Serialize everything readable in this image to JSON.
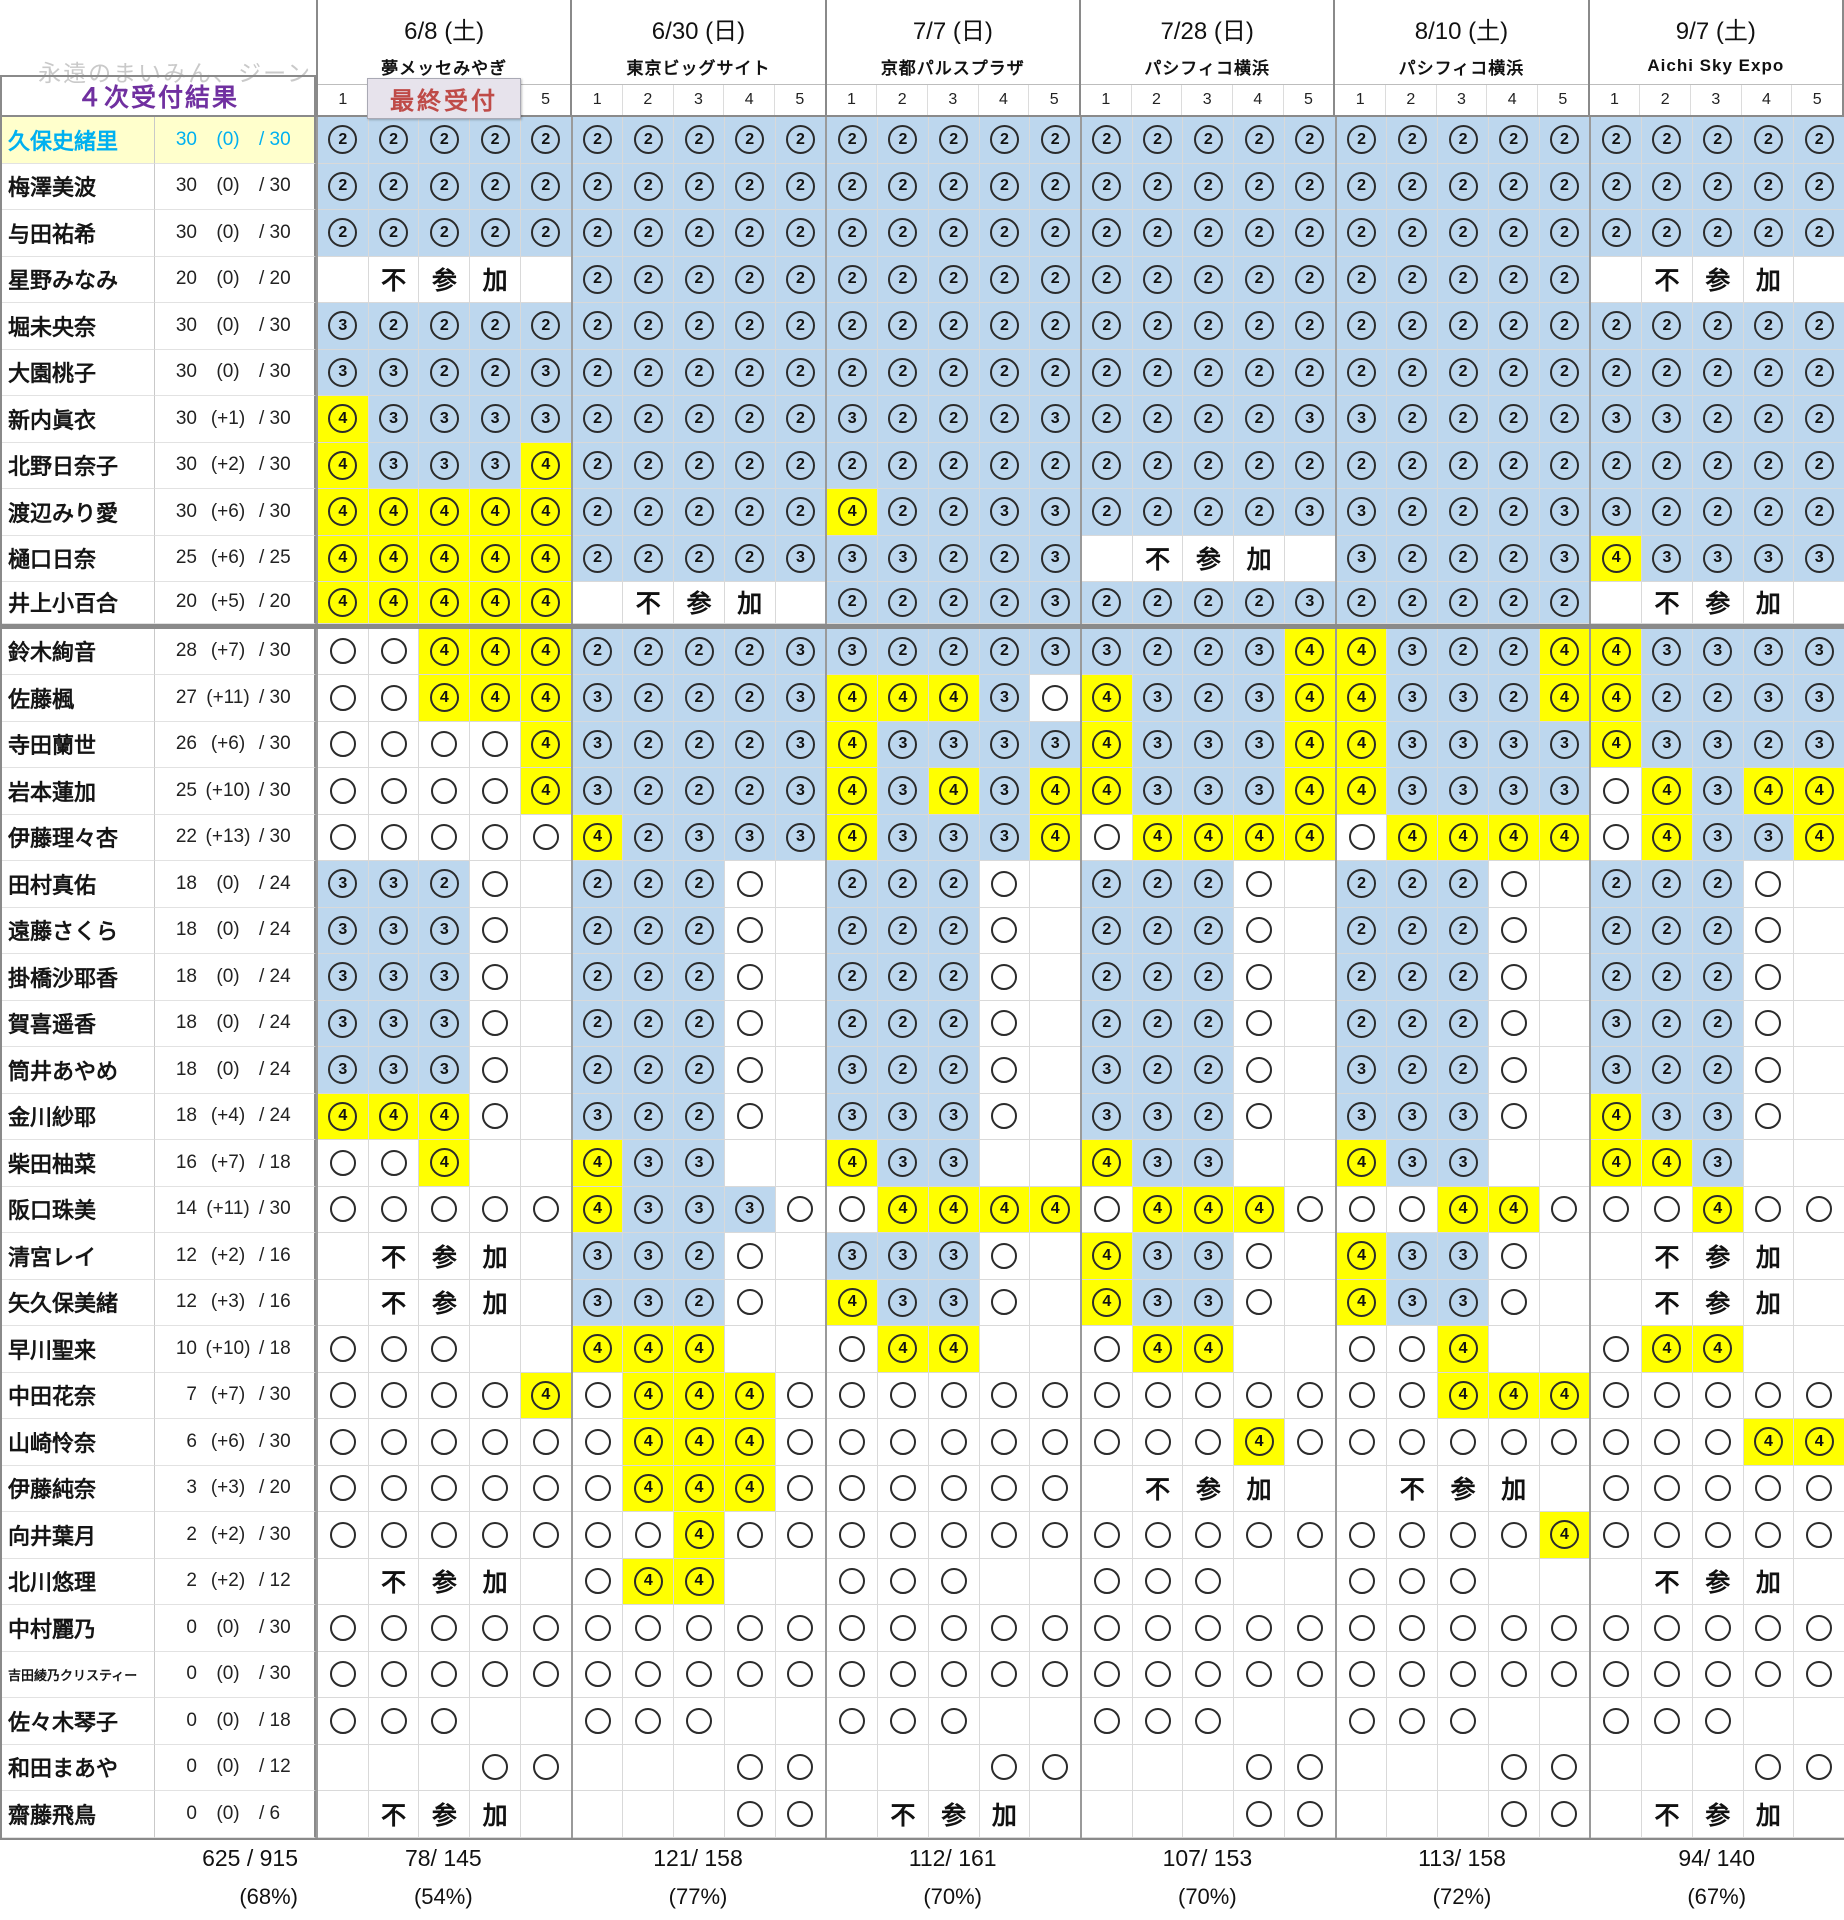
{
  "watermark": "永遠のまいみん、ジーン",
  "title": "４次受付結果",
  "badge": "最終受付",
  "grand_total": {
    "fraction": "625 / 915",
    "pct": "(68%)"
  },
  "legend_colors": {
    "won_earlier_bg": "#bdd7ee",
    "won_round4_bg": "#ffff00",
    "lost_bg": "#ffffff",
    "title_color": "#7030A0",
    "badge_color": "#bf4b48",
    "highlight_row_bg": "#ffffcc",
    "highlight_row_text": "#00b0f0"
  },
  "not_participating_label": "不参加",
  "events": [
    {
      "date": "6/8 (土)",
      "venue": "夢メッセみやぎ",
      "slots": [
        "1",
        "2",
        "3",
        "4",
        "5"
      ],
      "total": "78/ 145",
      "pct": "(54%)"
    },
    {
      "date": "6/30 (日)",
      "venue": "東京ビッグサイト",
      "slots": [
        "1",
        "2",
        "3",
        "4",
        "5"
      ],
      "total": "121/ 158",
      "pct": "(77%)"
    },
    {
      "date": "7/7 (日)",
      "venue": "京都パルスプラザ",
      "slots": [
        "1",
        "2",
        "3",
        "4",
        "5"
      ],
      "total": "112/ 161",
      "pct": "(70%)"
    },
    {
      "date": "7/28 (日)",
      "venue": "パシフィコ横浜",
      "slots": [
        "1",
        "2",
        "3",
        "4",
        "5"
      ],
      "total": "107/ 153",
      "pct": "(70%)"
    },
    {
      "date": "8/10 (土)",
      "venue": "パシフィコ横浜",
      "slots": [
        "1",
        "2",
        "3",
        "4",
        "5"
      ],
      "total": "113/ 158",
      "pct": "(72%)"
    },
    {
      "date": "9/7 (土)",
      "venue": "Aichi Sky Expo",
      "slots": [
        "1",
        "2",
        "3",
        "4",
        "5"
      ],
      "total": "94/ 140",
      "pct": "(67%)"
    }
  ],
  "cell_legend": {
    "2": "won round2 (blue)",
    "3": "won round3 (blue)",
    "4": "won round4 (yellow)",
    "o": "not won",
    ".": "no slot",
    "NP": "不参加"
  },
  "members": [
    {
      "name": "久保史緒里",
      "won": "30",
      "delta": "(0)",
      "max": "/ 30",
      "hl": true,
      "cells": [
        "22222",
        "22222",
        "22222",
        "22222",
        "22222",
        "22222"
      ]
    },
    {
      "name": "梅澤美波",
      "won": "30",
      "delta": "(0)",
      "max": "/ 30",
      "cells": [
        "22222",
        "22222",
        "22222",
        "22222",
        "22222",
        "22222"
      ]
    },
    {
      "name": "与田祐希",
      "won": "30",
      "delta": "(0)",
      "max": "/ 30",
      "cells": [
        "22222",
        "22222",
        "22222",
        "22222",
        "22222",
        "22222"
      ]
    },
    {
      "name": "星野みなみ",
      "won": "20",
      "delta": "(0)",
      "max": "/ 20",
      "cells": [
        "NP",
        "22222",
        "22222",
        "22222",
        "22222",
        "NP"
      ]
    },
    {
      "name": "堀未央奈",
      "won": "30",
      "delta": "(0)",
      "max": "/ 30",
      "cells": [
        "32222",
        "22222",
        "22222",
        "22222",
        "22222",
        "22222"
      ]
    },
    {
      "name": "大園桃子",
      "won": "30",
      "delta": "(0)",
      "max": "/ 30",
      "cells": [
        "33223",
        "22222",
        "22222",
        "22222",
        "22222",
        "22222"
      ]
    },
    {
      "name": "新内眞衣",
      "won": "30",
      "delta": "(+1)",
      "max": "/ 30",
      "cells": [
        "43333",
        "22222",
        "32223",
        "22223",
        "32222",
        "33222"
      ]
    },
    {
      "name": "北野日奈子",
      "won": "30",
      "delta": "(+2)",
      "max": "/ 30",
      "cells": [
        "43334",
        "22222",
        "22222",
        "22222",
        "22222",
        "22222"
      ]
    },
    {
      "name": "渡辺みり愛",
      "won": "30",
      "delta": "(+6)",
      "max": "/ 30",
      "cells": [
        "44444",
        "22222",
        "42233",
        "22223",
        "32223",
        "32222"
      ]
    },
    {
      "name": "樋口日奈",
      "won": "25",
      "delta": "(+6)",
      "max": "/ 25",
      "cells": [
        "44444",
        "22223",
        "33223",
        "NP",
        "32223",
        "43333"
      ]
    },
    {
      "name": "井上小百合",
      "won": "20",
      "delta": "(+5)",
      "max": "/ 20",
      "cells": [
        "44444",
        "NP",
        "22223",
        "22223",
        "22222",
        "NP"
      ]
    },
    {
      "name": "鈴木絢音",
      "won": "28",
      "delta": "(+7)",
      "max": "/ 30",
      "cells": [
        "oo444",
        "22223",
        "32223",
        "32234",
        "43224",
        "43333"
      ]
    },
    {
      "name": "佐藤楓",
      "won": "27",
      "delta": "(+11)",
      "max": "/ 30",
      "cells": [
        "oo444",
        "32223",
        "4443o",
        "43234",
        "43324",
        "42233"
      ]
    },
    {
      "name": "寺田蘭世",
      "won": "26",
      "delta": "(+6)",
      "max": "/ 30",
      "cells": [
        "oooo4",
        "32223",
        "43333",
        "43334",
        "43333",
        "43323"
      ]
    },
    {
      "name": "岩本蓮加",
      "won": "25",
      "delta": "(+10)",
      "max": "/ 30",
      "cells": [
        "oooo4",
        "32223",
        "43434",
        "43334",
        "43333",
        "o4344"
      ]
    },
    {
      "name": "伊藤理々杏",
      "won": "22",
      "delta": "(+13)",
      "max": "/ 30",
      "cells": [
        "ooooo",
        "42333",
        "43334",
        "o4444",
        "o4444",
        "o4334"
      ]
    },
    {
      "name": "田村真佑",
      "won": "18",
      "delta": "(0)",
      "max": "/ 24",
      "cells": [
        "332o.",
        "222o.",
        "222o.",
        "222o.",
        "222o.",
        "222o."
      ]
    },
    {
      "name": "遠藤さくら",
      "won": "18",
      "delta": "(0)",
      "max": "/ 24",
      "cells": [
        "333o.",
        "222o.",
        "222o.",
        "222o.",
        "222o.",
        "222o."
      ]
    },
    {
      "name": "掛橋沙耶香",
      "won": "18",
      "delta": "(0)",
      "max": "/ 24",
      "cells": [
        "333o.",
        "222o.",
        "222o.",
        "222o.",
        "222o.",
        "222o."
      ]
    },
    {
      "name": "賀喜遥香",
      "won": "18",
      "delta": "(0)",
      "max": "/ 24",
      "cells": [
        "333o.",
        "222o.",
        "222o.",
        "222o.",
        "222o.",
        "322o."
      ]
    },
    {
      "name": "筒井あやめ",
      "won": "18",
      "delta": "(0)",
      "max": "/ 24",
      "cells": [
        "333o.",
        "222o.",
        "322o.",
        "322o.",
        "322o.",
        "322o."
      ]
    },
    {
      "name": "金川紗耶",
      "won": "18",
      "delta": "(+4)",
      "max": "/ 24",
      "cells": [
        "444o.",
        "322o.",
        "333o.",
        "332o.",
        "333o.",
        "433o."
      ]
    },
    {
      "name": "柴田柚菜",
      "won": "16",
      "delta": "(+7)",
      "max": "/ 18",
      "cells": [
        "oo4..",
        "433..",
        "433..",
        "433..",
        "433..",
        "443.."
      ]
    },
    {
      "name": "阪口珠美",
      "won": "14",
      "delta": "(+11)",
      "max": "/ 30",
      "cells": [
        "ooooo",
        "4333o",
        "o4444",
        "o444o",
        "oo44o",
        "oo4oo"
      ]
    },
    {
      "name": "清宮レイ",
      "won": "12",
      "delta": "(+2)",
      "max": "/ 16",
      "cells": [
        "NP",
        "332o.",
        "333o.",
        "433o.",
        "433o.",
        "NP"
      ]
    },
    {
      "name": "矢久保美緒",
      "won": "12",
      "delta": "(+3)",
      "max": "/ 16",
      "cells": [
        "NP",
        "332o.",
        "433o.",
        "433o.",
        "433o.",
        "NP"
      ]
    },
    {
      "name": "早川聖来",
      "won": "10",
      "delta": "(+10)",
      "max": "/ 18",
      "cells": [
        "ooo..",
        "444..",
        "o44..",
        "o44..",
        "oo4..",
        "o44.."
      ]
    },
    {
      "name": "中田花奈",
      "won": "7",
      "delta": "(+7)",
      "max": "/ 30",
      "cells": [
        "oooo4",
        "o444o",
        "ooooo",
        "ooooo",
        "oo444",
        "ooooo"
      ]
    },
    {
      "name": "山崎怜奈",
      "won": "6",
      "delta": "(+6)",
      "max": "/ 30",
      "cells": [
        "ooooo",
        "o444o",
        "ooooo",
        "ooo4o",
        "ooooo",
        "ooo44"
      ]
    },
    {
      "name": "伊藤純奈",
      "won": "3",
      "delta": "(+3)",
      "max": "/ 20",
      "cells": [
        "ooooo",
        "o444o",
        "ooooo",
        "NP",
        "NP",
        "ooooo"
      ]
    },
    {
      "name": "向井葉月",
      "won": "2",
      "delta": "(+2)",
      "max": "/ 30",
      "cells": [
        "ooooo",
        "oo4oo",
        "ooooo",
        "ooooo",
        "oooo4",
        "ooooo"
      ]
    },
    {
      "name": "北川悠理",
      "won": "2",
      "delta": "(+2)",
      "max": "/ 12",
      "cells": [
        "NP",
        "o44..",
        "ooo..",
        "ooo..",
        "ooo..",
        "NP"
      ]
    },
    {
      "name": "中村麗乃",
      "won": "0",
      "delta": "(0)",
      "max": "/ 30",
      "cells": [
        "ooooo",
        "ooooo",
        "ooooo",
        "ooooo",
        "ooooo",
        "ooooo"
      ]
    },
    {
      "name": "吉田綾乃クリスティー",
      "won": "0",
      "delta": "(0)",
      "max": "/ 30",
      "cells": [
        "ooooo",
        "ooooo",
        "ooooo",
        "ooooo",
        "ooooo",
        "ooooo"
      ]
    },
    {
      "name": "佐々木琴子",
      "won": "0",
      "delta": "(0)",
      "max": "/ 18",
      "cells": [
        "ooo..",
        "ooo..",
        "ooo..",
        "ooo..",
        "ooo..",
        "ooo.."
      ]
    },
    {
      "name": "和田まあや",
      "won": "0",
      "delta": "(0)",
      "max": "/ 12",
      "cells": [
        "...oo",
        "...oo",
        "...oo",
        "...oo",
        "...oo",
        "...oo"
      ]
    },
    {
      "name": "齋藤飛鳥",
      "won": "0",
      "delta": "(0)",
      "max": "/ 6",
      "cells": [
        "NP",
        "...oo",
        "NP",
        "...oo",
        "...oo",
        "NP"
      ]
    }
  ]
}
